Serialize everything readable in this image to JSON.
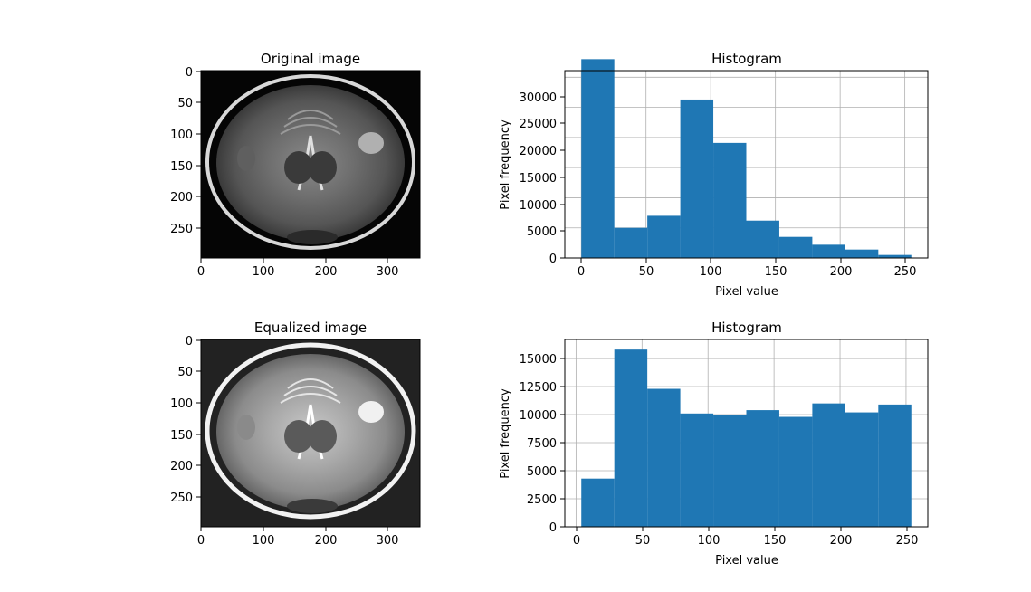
{
  "chart_data": [
    {
      "type": "image",
      "title": "Original image",
      "xlim": [
        0,
        352
      ],
      "ylim": [
        297,
        0
      ],
      "xticks": [
        "0",
        "100",
        "200",
        "300"
      ],
      "yticks": [
        "0",
        "50",
        "100",
        "150",
        "200",
        "250"
      ],
      "image_description": "axial brain MRI, original contrast"
    },
    {
      "type": "bar",
      "title": "Histogram",
      "xlabel": "Pixel value",
      "ylabel": "Pixel frequency",
      "bin_edges": [
        0,
        25.5,
        51,
        76.5,
        102,
        127.5,
        153,
        178.5,
        204,
        229.5,
        255
      ],
      "values": [
        33000,
        5000,
        7000,
        26300,
        19100,
        6200,
        3500,
        2200,
        1400,
        500
      ],
      "xlim": [
        -12.75,
        267.75
      ],
      "ylim": [
        0,
        30000
      ],
      "xticks": [
        "0",
        "50",
        "100",
        "150",
        "200",
        "250"
      ],
      "yticks": [
        "0",
        "5000",
        "10000",
        "15000",
        "20000",
        "25000",
        "30000"
      ],
      "grid": true,
      "color": "#1f77b4"
    },
    {
      "type": "image",
      "title": "Equalized image",
      "xlim": [
        0,
        352
      ],
      "ylim": [
        297,
        0
      ],
      "xticks": [
        "0",
        "100",
        "200",
        "300"
      ],
      "yticks": [
        "0",
        "50",
        "100",
        "150",
        "200",
        "250"
      ],
      "image_description": "axial brain MRI, histogram equalized"
    },
    {
      "type": "bar",
      "title": "Histogram",
      "xlabel": "Pixel value",
      "ylabel": "Pixel frequency",
      "bin_edges": [
        4,
        29,
        54,
        79,
        104,
        129,
        154,
        179,
        204,
        229,
        254
      ],
      "values": [
        4300,
        15800,
        12300,
        10100,
        10000,
        10400,
        9800,
        11000,
        10200,
        10900
      ],
      "xlim": [
        -8.5,
        266.5
      ],
      "ylim": [
        0,
        15000
      ],
      "xticks": [
        "0",
        "50",
        "100",
        "150",
        "200",
        "250"
      ],
      "yticks": [
        "0",
        "2500",
        "5000",
        "7500",
        "10000",
        "12500",
        "15000"
      ],
      "grid": true,
      "color": "#1f77b4"
    }
  ]
}
